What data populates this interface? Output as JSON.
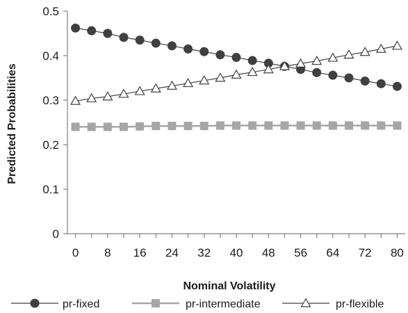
{
  "chart_data": {
    "type": "line",
    "title": "",
    "xlabel": "Nominal Volatility",
    "ylabel": "Predicted Probabilities",
    "xlim": [
      -2,
      82
    ],
    "ylim": [
      0,
      0.5
    ],
    "x_ticks": [
      "0",
      "8",
      "16",
      "24",
      "32",
      "40",
      "48",
      "56",
      "64",
      "72",
      "80"
    ],
    "y_ticks": [
      "0",
      "0.1",
      "0.2",
      "0.3",
      "0.4",
      "0.5"
    ],
    "grid": false,
    "legend_position": "bottom",
    "x": [
      0,
      4,
      8,
      12,
      16,
      20,
      24,
      28,
      32,
      36,
      40,
      44,
      48,
      52,
      56,
      60,
      64,
      68,
      72,
      76,
      80
    ],
    "series": [
      {
        "name": "pr-fixed",
        "marker": "circle",
        "color": "#404040",
        "values": [
          0.462,
          0.456,
          0.45,
          0.441,
          0.435,
          0.428,
          0.422,
          0.415,
          0.409,
          0.402,
          0.396,
          0.389,
          0.383,
          0.376,
          0.369,
          0.362,
          0.356,
          0.35,
          0.343,
          0.337,
          0.331
        ]
      },
      {
        "name": "pr-intermediate",
        "marker": "square",
        "color": "#a6a6a6",
        "values": [
          0.24,
          0.24,
          0.24,
          0.24,
          0.241,
          0.242,
          0.242,
          0.242,
          0.242,
          0.243,
          0.243,
          0.243,
          0.243,
          0.243,
          0.243,
          0.243,
          0.243,
          0.243,
          0.243,
          0.243,
          0.243
        ]
      },
      {
        "name": "pr-flexible",
        "marker": "triangle",
        "color": "#404040",
        "values": [
          0.298,
          0.304,
          0.308,
          0.314,
          0.32,
          0.326,
          0.332,
          0.338,
          0.344,
          0.35,
          0.357,
          0.363,
          0.369,
          0.376,
          0.382,
          0.388,
          0.395,
          0.402,
          0.408,
          0.415,
          0.422
        ]
      }
    ]
  }
}
